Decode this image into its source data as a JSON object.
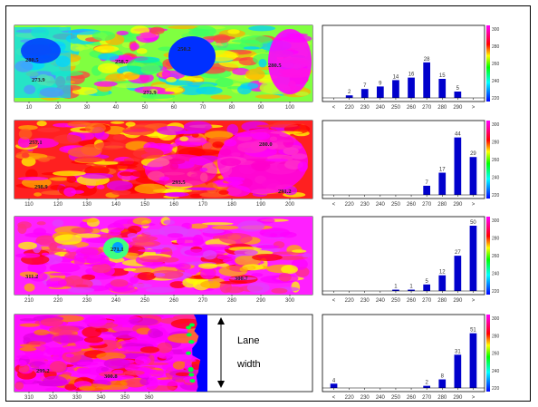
{
  "annotation": {
    "line1": "Lane",
    "line2": "width"
  },
  "colorbar_ticks": [
    "300",
    "280",
    "260",
    "240",
    "220"
  ],
  "chart_data": [
    {
      "type": "heatmap",
      "xticks": [
        "10",
        "20",
        "30",
        "40",
        "50",
        "60",
        "70",
        "80",
        "90",
        "100"
      ],
      "labels": [
        "280.5",
        "273.9",
        "258.7",
        "273.9",
        "250.2",
        "280.5"
      ]
    },
    {
      "type": "bar",
      "categories": [
        "<",
        "220",
        "230",
        "240",
        "250",
        "260",
        "270",
        "280",
        "290",
        ">"
      ],
      "values": [
        0,
        2,
        7,
        9,
        14,
        16,
        28,
        15,
        5,
        0
      ],
      "ylim": [
        0,
        50
      ]
    },
    {
      "type": "heatmap",
      "xticks": [
        "110",
        "120",
        "130",
        "140",
        "150",
        "160",
        "170",
        "180",
        "190",
        "200"
      ],
      "labels": [
        "257.1",
        "298.9",
        "293.5",
        "280.0",
        "291.2"
      ]
    },
    {
      "type": "bar",
      "categories": [
        "<",
        "220",
        "230",
        "240",
        "250",
        "260",
        "270",
        "280",
        "290",
        ">"
      ],
      "values": [
        0,
        0,
        0,
        0,
        0,
        0,
        7,
        17,
        44,
        29
      ],
      "ylim": [
        0,
        50
      ]
    },
    {
      "type": "heatmap",
      "xticks": [
        "210",
        "220",
        "230",
        "240",
        "250",
        "260",
        "270",
        "280",
        "290",
        "300"
      ],
      "labels": [
        "271.1",
        "311.2",
        "300.7"
      ]
    },
    {
      "type": "bar",
      "categories": [
        "<",
        "220",
        "230",
        "240",
        "250",
        "260",
        "270",
        "280",
        "290",
        ">"
      ],
      "values": [
        0,
        0,
        0,
        0,
        1,
        1,
        5,
        12,
        27,
        50
      ],
      "ylim": [
        0,
        50
      ]
    },
    {
      "type": "heatmap",
      "xticks": [
        "310",
        "320",
        "330",
        "340",
        "350",
        "360"
      ],
      "labels": [
        "299.2",
        "300.8"
      ]
    },
    {
      "type": "bar",
      "categories": [
        "<",
        "220",
        "230",
        "240",
        "250",
        "260",
        "270",
        "280",
        "290",
        ">"
      ],
      "values": [
        4,
        0,
        0,
        0,
        0,
        0,
        2,
        8,
        31,
        51
      ],
      "ylim": [
        0,
        60
      ]
    }
  ]
}
